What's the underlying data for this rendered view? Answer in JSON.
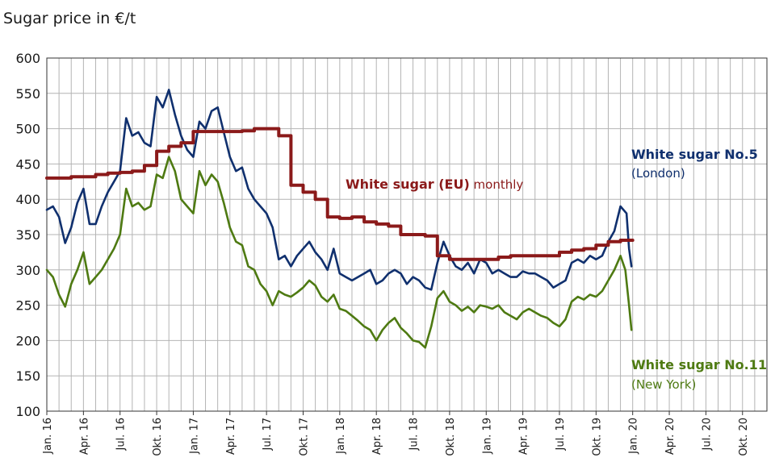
{
  "chart_data": {
    "type": "line",
    "title": "Sugar price in €/t",
    "ylim": [
      100,
      600
    ],
    "yticks": [
      "100",
      "150",
      "200",
      "250",
      "300",
      "350",
      "400",
      "450",
      "500",
      "550",
      "600"
    ],
    "x_ticks": [
      "Jan. 16",
      "Apr. 16",
      "Jul. 16",
      "Okt. 16",
      "Jan. 17",
      "Apr. 17",
      "Jul. 17",
      "Okt. 17",
      "Jan. 18",
      "Apr. 18",
      "Jul. 18",
      "Okt. 18",
      "Jan. 19",
      "Apr. 19",
      "Jul. 19",
      "Okt. 19",
      "Jan. 20",
      "Apr. 20",
      "Jul. 20",
      "Okt. 20"
    ],
    "xlim_months": [
      0,
      59
    ],
    "grid": true,
    "colors": {
      "eu": "#8B1A1A",
      "london": "#10306E",
      "newyork": "#4E7A12",
      "grid": "#B4B4B4",
      "axis": "#333333"
    },
    "series": [
      {
        "key": "eu",
        "name": "White sugar (EU) monthly",
        "step": true,
        "points": [
          [
            0,
            430
          ],
          [
            1,
            430
          ],
          [
            2,
            432
          ],
          [
            3,
            432
          ],
          [
            4,
            435
          ],
          [
            5,
            437
          ],
          [
            6,
            438
          ],
          [
            7,
            440
          ],
          [
            8,
            448
          ],
          [
            9,
            468
          ],
          [
            10,
            475
          ],
          [
            11,
            480
          ],
          [
            12,
            496
          ],
          [
            13,
            496
          ],
          [
            14,
            496
          ],
          [
            15,
            496
          ],
          [
            16,
            497
          ],
          [
            17,
            500
          ],
          [
            18,
            500
          ],
          [
            19,
            490
          ],
          [
            20,
            420
          ],
          [
            21,
            410
          ],
          [
            22,
            400
          ],
          [
            23,
            375
          ],
          [
            24,
            373
          ],
          [
            25,
            375
          ],
          [
            26,
            368
          ],
          [
            27,
            365
          ],
          [
            28,
            362
          ],
          [
            29,
            350
          ],
          [
            30,
            350
          ],
          [
            31,
            348
          ],
          [
            32,
            320
          ],
          [
            33,
            315
          ],
          [
            34,
            315
          ],
          [
            35,
            315
          ],
          [
            36,
            315
          ],
          [
            37,
            318
          ],
          [
            38,
            320
          ],
          [
            39,
            320
          ],
          [
            40,
            320
          ],
          [
            41,
            320
          ],
          [
            42,
            325
          ],
          [
            43,
            328
          ],
          [
            44,
            330
          ],
          [
            45,
            335
          ],
          [
            46,
            340
          ],
          [
            47,
            342
          ]
        ]
      },
      {
        "key": "london",
        "name": "White sugar No.5",
        "subname": "(London)",
        "step": false,
        "points": [
          [
            0,
            385
          ],
          [
            0.5,
            390
          ],
          [
            1,
            375
          ],
          [
            1.5,
            338
          ],
          [
            2,
            360
          ],
          [
            2.5,
            395
          ],
          [
            3,
            415
          ],
          [
            3.5,
            365
          ],
          [
            4,
            365
          ],
          [
            4.5,
            390
          ],
          [
            5,
            410
          ],
          [
            5.5,
            425
          ],
          [
            6,
            440
          ],
          [
            6.5,
            515
          ],
          [
            7,
            490
          ],
          [
            7.5,
            495
          ],
          [
            8,
            480
          ],
          [
            8.5,
            475
          ],
          [
            9,
            545
          ],
          [
            9.5,
            530
          ],
          [
            10,
            555
          ],
          [
            10.5,
            520
          ],
          [
            11,
            490
          ],
          [
            11.5,
            470
          ],
          [
            12,
            460
          ],
          [
            12.5,
            510
          ],
          [
            13,
            500
          ],
          [
            13.5,
            525
          ],
          [
            14,
            530
          ],
          [
            14.5,
            495
          ],
          [
            15,
            460
          ],
          [
            15.5,
            440
          ],
          [
            16,
            445
          ],
          [
            16.5,
            415
          ],
          [
            17,
            400
          ],
          [
            17.5,
            390
          ],
          [
            18,
            380
          ],
          [
            18.5,
            360
          ],
          [
            19,
            315
          ],
          [
            19.5,
            320
          ],
          [
            20,
            305
          ],
          [
            20.5,
            320
          ],
          [
            21,
            330
          ],
          [
            21.5,
            340
          ],
          [
            22,
            325
          ],
          [
            22.5,
            315
          ],
          [
            23,
            300
          ],
          [
            23.5,
            330
          ],
          [
            24,
            295
          ],
          [
            24.5,
            290
          ],
          [
            25,
            285
          ],
          [
            25.5,
            290
          ],
          [
            26,
            295
          ],
          [
            26.5,
            300
          ],
          [
            27,
            280
          ],
          [
            27.5,
            285
          ],
          [
            28,
            295
          ],
          [
            28.5,
            300
          ],
          [
            29,
            295
          ],
          [
            29.5,
            280
          ],
          [
            30,
            290
          ],
          [
            30.5,
            285
          ],
          [
            31,
            275
          ],
          [
            31.5,
            272
          ],
          [
            32,
            310
          ],
          [
            32.5,
            340
          ],
          [
            33,
            320
          ],
          [
            33.5,
            305
          ],
          [
            34,
            300
          ],
          [
            34.5,
            310
          ],
          [
            35,
            295
          ],
          [
            35.5,
            315
          ],
          [
            36,
            310
          ],
          [
            36.5,
            295
          ],
          [
            37,
            300
          ],
          [
            37.5,
            295
          ],
          [
            38,
            290
          ],
          [
            38.5,
            290
          ],
          [
            39,
            298
          ],
          [
            39.5,
            295
          ],
          [
            40,
            295
          ],
          [
            40.5,
            290
          ],
          [
            41,
            285
          ],
          [
            41.5,
            275
          ],
          [
            42,
            280
          ],
          [
            42.5,
            285
          ],
          [
            43,
            310
          ],
          [
            43.5,
            315
          ],
          [
            44,
            310
          ],
          [
            44.5,
            320
          ],
          [
            45,
            315
          ],
          [
            45.5,
            320
          ],
          [
            46,
            340
          ],
          [
            46.5,
            355
          ],
          [
            47,
            390
          ],
          [
            47.5,
            380
          ],
          [
            47.7,
            330
          ],
          [
            47.9,
            305
          ]
        ]
      },
      {
        "key": "newyork",
        "name": "White sugar No.11",
        "subname": "(New York)",
        "step": false,
        "points": [
          [
            0,
            300
          ],
          [
            0.5,
            290
          ],
          [
            1,
            265
          ],
          [
            1.5,
            248
          ],
          [
            2,
            280
          ],
          [
            2.5,
            300
          ],
          [
            3,
            325
          ],
          [
            3.5,
            280
          ],
          [
            4,
            290
          ],
          [
            4.5,
            300
          ],
          [
            5,
            315
          ],
          [
            5.5,
            330
          ],
          [
            6,
            350
          ],
          [
            6.5,
            415
          ],
          [
            7,
            390
          ],
          [
            7.5,
            395
          ],
          [
            8,
            385
          ],
          [
            8.5,
            390
          ],
          [
            9,
            435
          ],
          [
            9.5,
            430
          ],
          [
            10,
            460
          ],
          [
            10.5,
            440
          ],
          [
            11,
            400
          ],
          [
            11.5,
            390
          ],
          [
            12,
            380
          ],
          [
            12.5,
            440
          ],
          [
            13,
            420
          ],
          [
            13.5,
            435
          ],
          [
            14,
            425
          ],
          [
            14.5,
            395
          ],
          [
            15,
            360
          ],
          [
            15.5,
            340
          ],
          [
            16,
            335
          ],
          [
            16.5,
            305
          ],
          [
            17,
            300
          ],
          [
            17.5,
            280
          ],
          [
            18,
            270
          ],
          [
            18.5,
            250
          ],
          [
            19,
            270
          ],
          [
            19.5,
            265
          ],
          [
            20,
            262
          ],
          [
            20.5,
            268
          ],
          [
            21,
            275
          ],
          [
            21.5,
            285
          ],
          [
            22,
            278
          ],
          [
            22.5,
            262
          ],
          [
            23,
            255
          ],
          [
            23.5,
            265
          ],
          [
            24,
            245
          ],
          [
            24.5,
            242
          ],
          [
            25,
            235
          ],
          [
            25.5,
            228
          ],
          [
            26,
            220
          ],
          [
            26.5,
            215
          ],
          [
            27,
            200
          ],
          [
            27.5,
            215
          ],
          [
            28,
            225
          ],
          [
            28.5,
            232
          ],
          [
            29,
            218
          ],
          [
            29.5,
            210
          ],
          [
            30,
            200
          ],
          [
            30.5,
            198
          ],
          [
            31,
            190
          ],
          [
            31.5,
            220
          ],
          [
            32,
            260
          ],
          [
            32.5,
            270
          ],
          [
            33,
            255
          ],
          [
            33.5,
            250
          ],
          [
            34,
            242
          ],
          [
            34.5,
            248
          ],
          [
            35,
            240
          ],
          [
            35.5,
            250
          ],
          [
            36,
            248
          ],
          [
            36.5,
            245
          ],
          [
            37,
            250
          ],
          [
            37.5,
            240
          ],
          [
            38,
            235
          ],
          [
            38.5,
            230
          ],
          [
            39,
            240
          ],
          [
            39.5,
            245
          ],
          [
            40,
            240
          ],
          [
            40.5,
            235
          ],
          [
            41,
            232
          ],
          [
            41.5,
            225
          ],
          [
            42,
            220
          ],
          [
            42.5,
            230
          ],
          [
            43,
            255
          ],
          [
            43.5,
            262
          ],
          [
            44,
            258
          ],
          [
            44.5,
            265
          ],
          [
            45,
            262
          ],
          [
            45.5,
            270
          ],
          [
            46,
            285
          ],
          [
            46.5,
            300
          ],
          [
            47,
            320
          ],
          [
            47.4,
            300
          ],
          [
            47.7,
            250
          ],
          [
            47.9,
            215
          ]
        ]
      }
    ]
  },
  "labels": {
    "eu_bold": "White sugar (EU)",
    "eu_rest": " monthly",
    "london_main": "White sugar No.5",
    "london_sub": "(London)",
    "ny_main": "White sugar No.11",
    "ny_sub": "(New York)"
  }
}
